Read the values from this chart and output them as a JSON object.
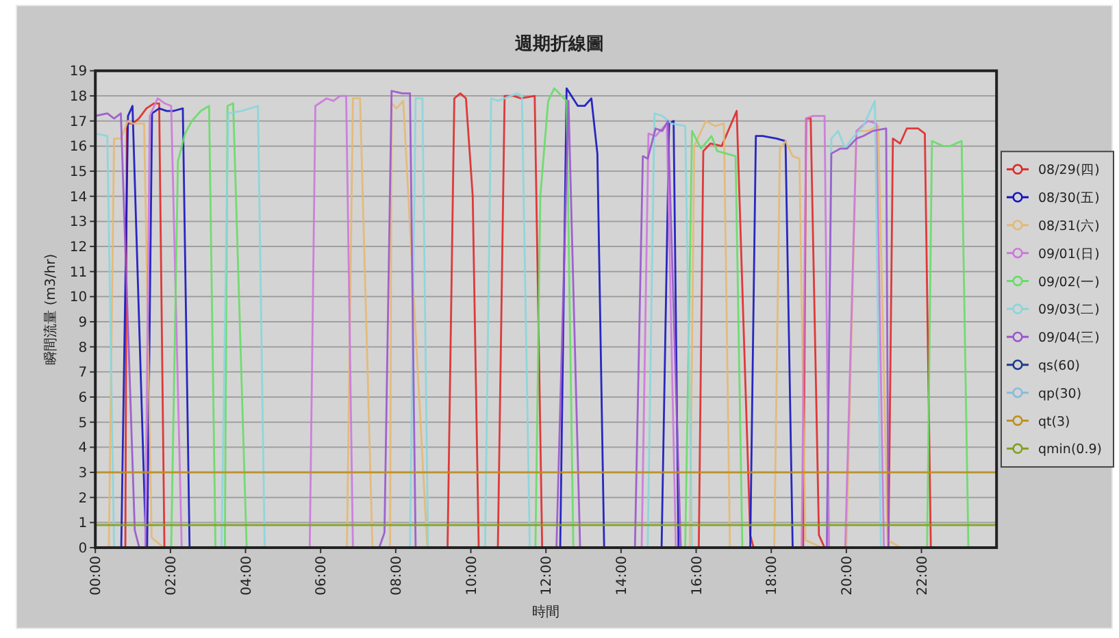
{
  "chart_data": {
    "type": "line",
    "title": "週期折線圖",
    "xlabel": "時間",
    "ylabel": "瞬間流量 (m3/hr)",
    "xlim": [
      0,
      24
    ],
    "ylim": [
      0,
      19
    ],
    "xticks": [
      {
        "value": 0,
        "label": "00:00"
      },
      {
        "value": 2,
        "label": "02:00"
      },
      {
        "value": 4,
        "label": "04:00"
      },
      {
        "value": 6,
        "label": "06:00"
      },
      {
        "value": 8,
        "label": "08:00"
      },
      {
        "value": 10,
        "label": "10:00"
      },
      {
        "value": 12,
        "label": "12:00"
      },
      {
        "value": 14,
        "label": "14:00"
      },
      {
        "value": 16,
        "label": "16:00"
      },
      {
        "value": 18,
        "label": "18:00"
      },
      {
        "value": 20,
        "label": "20:00"
      },
      {
        "value": 22,
        "label": "22:00"
      }
    ],
    "yticks": [
      0,
      1,
      2,
      3,
      4,
      5,
      6,
      7,
      8,
      9,
      10,
      11,
      12,
      13,
      14,
      15,
      16,
      17,
      18,
      19
    ],
    "grid": "y",
    "legend": "right",
    "series": [
      {
        "name": "08/29(四)",
        "color": "#e02828",
        "x": [
          0.8,
          0.84,
          1.0,
          1.16,
          1.36,
          1.56,
          1.7,
          1.84,
          9.38,
          9.56,
          9.72,
          9.87,
          10.05,
          10.21,
          10.72,
          10.9,
          11.14,
          11.33,
          11.7,
          11.9,
          16.07,
          16.19,
          16.38,
          16.68,
          17.08,
          17.44,
          17.53,
          18.85,
          18.93,
          19.05,
          19.27,
          19.42,
          21.12,
          21.24,
          21.43,
          21.61,
          21.91,
          22.09,
          22.25
        ],
        "values": [
          0,
          16.9,
          16.9,
          17.1,
          17.5,
          17.7,
          17.7,
          0,
          0,
          17.9,
          18.1,
          17.9,
          14.0,
          0,
          0,
          18.0,
          18.0,
          17.9,
          18.0,
          0,
          0,
          15.8,
          16.1,
          16.0,
          17.4,
          0.5,
          0,
          0,
          17.1,
          17.1,
          0.5,
          0,
          0,
          16.3,
          16.1,
          16.7,
          16.7,
          16.5,
          0
        ]
      },
      {
        "name": "08/30(五)",
        "color": "#1414c0",
        "x": [
          0.69,
          0.87,
          0.99,
          1.35,
          1.38,
          1.51,
          1.7,
          1.9,
          2.08,
          2.33,
          2.51,
          12.38,
          12.55,
          12.85,
          13.03,
          13.21,
          13.37,
          13.55,
          15.08,
          15.28,
          15.4,
          15.53,
          17.44,
          17.59,
          17.77,
          18.14,
          18.38,
          18.57
        ],
        "values": [
          0,
          17.2,
          17.6,
          0,
          0,
          17.3,
          17.5,
          17.4,
          17.4,
          17.5,
          0,
          0,
          18.3,
          17.6,
          17.6,
          17.9,
          15.7,
          0,
          0,
          16.9,
          17.0,
          0,
          0,
          16.4,
          16.4,
          16.3,
          16.2,
          0
        ]
      },
      {
        "name": "08/31(六)",
        "color": "#e6b872",
        "x": [
          0.36,
          0.5,
          0.68,
          0.87,
          1.0,
          1.3,
          1.5,
          1.82,
          6.7,
          6.86,
          7.05,
          7.38,
          7.85,
          7.89,
          8.02,
          8.2,
          8.84,
          15.83,
          15.95,
          16.26,
          16.5,
          16.74,
          16.9,
          18.08,
          18.23,
          18.38,
          18.57,
          18.75,
          18.91,
          19.36,
          20.0,
          20.27,
          20.57,
          20.85,
          21.1,
          21.45
        ],
        "values": [
          0,
          16.3,
          16.3,
          17.0,
          16.9,
          16.9,
          0.4,
          0,
          0,
          17.9,
          17.9,
          0,
          0,
          17.7,
          17.5,
          17.8,
          0,
          0,
          16.0,
          17.0,
          16.8,
          16.9,
          0,
          0,
          15.9,
          16.2,
          15.6,
          15.5,
          0.3,
          0,
          0,
          16.6,
          16.6,
          16.8,
          0.3,
          0
        ]
      },
      {
        "name": "09/01(日)",
        "color": "#cc77dd",
        "x": [
          1.33,
          1.45,
          1.66,
          1.85,
          2.02,
          2.3,
          5.71,
          5.86,
          6.16,
          6.34,
          6.52,
          6.68,
          6.86,
          14.55,
          14.73,
          14.92,
          15.22,
          15.46,
          18.81,
          18.93,
          19.11,
          19.42,
          19.54,
          19.97,
          20.27,
          20.57,
          20.8,
          21.0
        ],
        "values": [
          0,
          17.2,
          17.9,
          17.7,
          17.6,
          0,
          0,
          17.6,
          17.9,
          17.8,
          18.0,
          18.0,
          0,
          0,
          16.5,
          16.4,
          16.9,
          0,
          0,
          17.1,
          17.2,
          17.2,
          0,
          0,
          16.6,
          17.0,
          16.9,
          0
        ]
      },
      {
        "name": "09/02(一)",
        "color": "#66dd66",
        "x": [
          2.02,
          2.2,
          2.39,
          2.57,
          2.81,
          3.03,
          3.2,
          3.45,
          3.52,
          3.67,
          4.03,
          11.72,
          11.85,
          12.06,
          12.22,
          12.55,
          12.73,
          15.71,
          15.89,
          16.13,
          16.41,
          16.56,
          17.05,
          17.23,
          22.15,
          22.28,
          22.58,
          22.77,
          23.07,
          23.25
        ],
        "values": [
          0,
          15.4,
          16.5,
          17.0,
          17.4,
          17.6,
          0,
          0,
          17.6,
          17.7,
          0,
          0,
          14.0,
          17.8,
          18.3,
          17.8,
          0,
          0,
          16.6,
          15.9,
          16.4,
          15.8,
          15.6,
          0,
          0,
          16.2,
          16.0,
          16.0,
          16.2,
          0
        ]
      },
      {
        "name": "09/03(二)",
        "color": "#88d6dc",
        "x": [
          0,
          0.32,
          0.5,
          3.36,
          3.54,
          3.9,
          4.33,
          4.51,
          8.38,
          8.53,
          8.71,
          8.86,
          10.38,
          10.54,
          10.72,
          11.24,
          11.36,
          11.57,
          14.71,
          14.89,
          15.1,
          15.34,
          15.71,
          15.89,
          19.48,
          19.6,
          19.78,
          19.97,
          20.15,
          20.45,
          20.76,
          20.92
        ],
        "values": [
          16.5,
          16.4,
          0,
          0,
          17.3,
          17.4,
          17.6,
          0,
          0,
          17.9,
          17.9,
          0,
          0,
          17.9,
          17.8,
          18.1,
          18.0,
          0,
          0,
          17.3,
          17.2,
          16.9,
          16.8,
          0,
          0,
          16.3,
          16.6,
          15.9,
          16.3,
          16.8,
          17.8,
          0
        ]
      },
      {
        "name": "09/04(三)",
        "color": "#9955cc",
        "x": [
          0,
          0.32,
          0.5,
          0.68,
          1.05,
          1.17,
          7.56,
          7.7,
          7.89,
          8.17,
          8.38,
          8.53,
          12.28,
          12.6,
          12.91,
          14.37,
          14.58,
          14.71,
          14.92,
          15.1,
          15.25,
          15.59,
          19.48,
          19.6,
          19.84,
          20.02,
          20.27,
          20.45,
          20.7,
          21.06,
          21.12
        ],
        "values": [
          17.2,
          17.3,
          17.1,
          17.3,
          0.7,
          0,
          0,
          0.6,
          18.2,
          18.1,
          18.1,
          0,
          0,
          17.8,
          0,
          0,
          15.6,
          15.5,
          16.7,
          16.6,
          17.0,
          0,
          0,
          15.7,
          15.9,
          15.9,
          16.3,
          16.4,
          16.6,
          16.7,
          0
        ]
      },
      {
        "name": "qs(60)",
        "color": "#1a3a8a"
      },
      {
        "name": "qp(30)",
        "color": "#88bbdd"
      },
      {
        "name": "qt(3)",
        "color": "#c09020",
        "x": [
          0,
          24
        ],
        "values": [
          3,
          3
        ]
      },
      {
        "name": "qmin(0.9)",
        "color": "#80a020",
        "x": [
          0,
          24
        ],
        "values": [
          0.9,
          0.9
        ]
      }
    ]
  }
}
